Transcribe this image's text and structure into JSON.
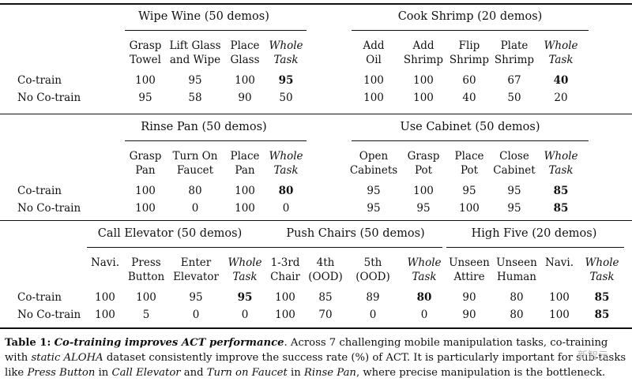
{
  "sections": [
    {
      "blocks": [
        {
          "title": "Wipe Wine (50 demos)",
          "columns": [
            {
              "h": [
                "Grasp",
                "Towel"
              ],
              "co": "100",
              "no": "95"
            },
            {
              "h": [
                "Lift Glass",
                "and Wipe"
              ],
              "co": "95",
              "no": "58"
            },
            {
              "h": [
                "Place",
                "Glass"
              ],
              "co": "100",
              "no": "90"
            },
            {
              "h": [
                "Whole",
                "Task"
              ],
              "co": "95",
              "no": "50",
              "whole": true
            }
          ]
        },
        {
          "title": "Cook Shrimp (20 demos)",
          "columns": [
            {
              "h": [
                "Add",
                "Oil"
              ],
              "co": "100",
              "no": "100"
            },
            {
              "h": [
                "Add",
                "Shrimp"
              ],
              "co": "100",
              "no": "100"
            },
            {
              "h": [
                "Flip",
                "Shrimp"
              ],
              "co": "60",
              "no": "40"
            },
            {
              "h": [
                "Plate",
                "Shrimp"
              ],
              "co": "67",
              "no": "50"
            },
            {
              "h": [
                "Whole",
                "Task"
              ],
              "co": "40",
              "no": "20",
              "whole": true
            }
          ]
        }
      ]
    },
    {
      "blocks": [
        {
          "title": "Rinse Pan (50 demos)",
          "columns": [
            {
              "h": [
                "Grasp",
                "Pan"
              ],
              "co": "100",
              "no": "100"
            },
            {
              "h": [
                "Turn On",
                "Faucet"
              ],
              "co": "80",
              "no": "0"
            },
            {
              "h": [
                "Place",
                "Pan"
              ],
              "co": "100",
              "no": "100"
            },
            {
              "h": [
                "Whole",
                "Task"
              ],
              "co": "80",
              "no": "0",
              "whole": true
            }
          ]
        },
        {
          "title": "Use Cabinet (50 demos)",
          "columns": [
            {
              "h": [
                "Open",
                "Cabinets"
              ],
              "co": "95",
              "no": "95"
            },
            {
              "h": [
                "Grasp",
                "Pot"
              ],
              "co": "100",
              "no": "95"
            },
            {
              "h": [
                "Place",
                "Pot"
              ],
              "co": "95",
              "no": "100"
            },
            {
              "h": [
                "Close",
                "Cabinet"
              ],
              "co": "95",
              "no": "95"
            },
            {
              "h": [
                "Whole",
                "Task"
              ],
              "co": "85",
              "no": "85",
              "whole": true,
              "bold_no": true
            }
          ]
        }
      ]
    },
    {
      "blocks": [
        {
          "title": "Call Elevator (50 demos)",
          "columns": [
            {
              "h": [
                "Navi.",
                ""
              ],
              "co": "100",
              "no": "100"
            },
            {
              "h": [
                "Press",
                "Button"
              ],
              "co": "100",
              "no": "5"
            },
            {
              "h": [
                "Enter",
                "Elevator"
              ],
              "co": "95",
              "no": "0"
            },
            {
              "h": [
                "Whole",
                "Task"
              ],
              "co": "95",
              "no": "0",
              "whole": true
            }
          ]
        },
        {
          "title": "Push Chairs (50 demos)",
          "columns": [
            {
              "h": [
                "1-3rd",
                "Chair"
              ],
              "co": "100",
              "no": "100"
            },
            {
              "h": [
                "4th",
                "(OOD)"
              ],
              "co": "85",
              "no": "70"
            },
            {
              "h": [
                "5th",
                "(OOD)"
              ],
              "co": "89",
              "no": "0"
            },
            {
              "h": [
                "Whole",
                "Task"
              ],
              "co": "80",
              "no": "0",
              "whole": true
            }
          ]
        },
        {
          "title": "High Five (20 demos)",
          "columns": [
            {
              "h": [
                "Unseen",
                "Attire"
              ],
              "co": "90",
              "no": "90"
            },
            {
              "h": [
                "Unseen",
                "Human"
              ],
              "co": "80",
              "no": "80"
            },
            {
              "h": [
                "Navi.",
                ""
              ],
              "co": "100",
              "no": "100"
            },
            {
              "h": [
                "Whole",
                "Task"
              ],
              "co": "85",
              "no": "85",
              "whole": true,
              "bold_no": true
            }
          ]
        }
      ]
    }
  ],
  "row_labels": {
    "co": "Co-train",
    "no": "No Co-train"
  },
  "caption": {
    "label": "Table 1:",
    "heading": "Co-training improves ACT performance",
    "p1": ". Across 7 challenging mobile manipulation tasks, co-training",
    "p2": "with ",
    "dataset": "static ALOHA",
    "p3": " dataset consistently improve the success rate (%) of ACT. It is particularly important for sub-tasks",
    "p4": "like ",
    "e1": "Press Button",
    "p5": " in ",
    "e2": "Call Elevator",
    "p6": " and ",
    "e3": "Turn on Faucet",
    "p7": " in ",
    "e4": "Rinse Pan",
    "p8": ", where precise manipulation is the bottleneck."
  },
  "watermark": "新智元"
}
